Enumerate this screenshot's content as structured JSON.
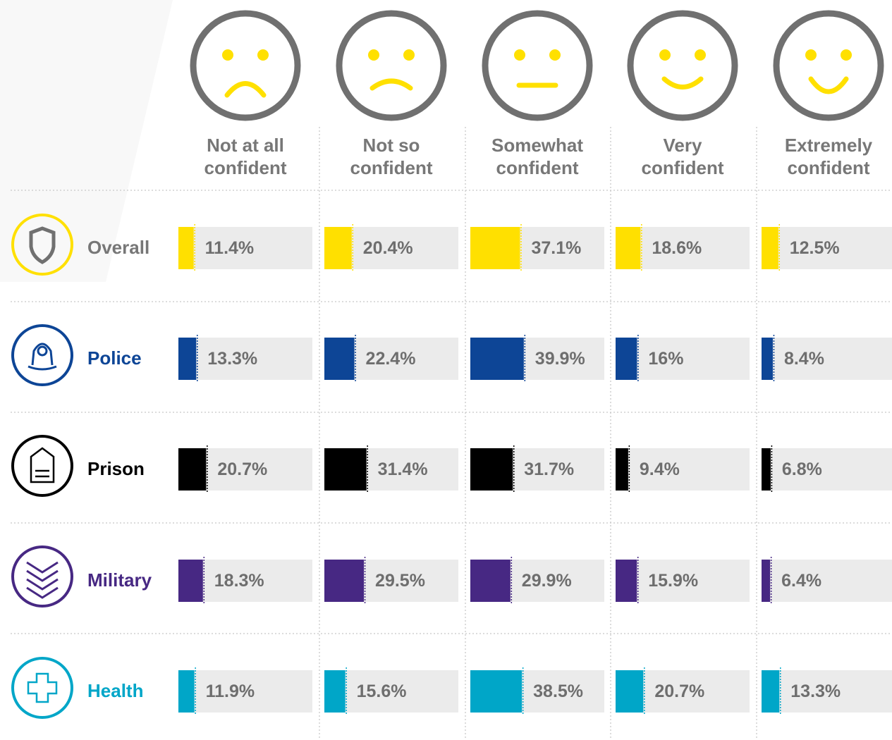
{
  "chart_data": {
    "type": "bar",
    "categories": [
      "Not at all confident",
      "Not so confident",
      "Somewhat confident",
      "Very confident",
      "Extremely confident"
    ],
    "xlim": [
      0,
      100
    ],
    "series": [
      {
        "name": "Overall",
        "color": "#ffe000",
        "name_color": "#777777",
        "values": [
          11.4,
          20.4,
          37.1,
          18.6,
          12.5
        ],
        "value_labels": [
          "11.4%",
          "20.4%",
          "37.1%",
          "18.6%",
          "12.5%"
        ]
      },
      {
        "name": "Police",
        "color": "#0d4596",
        "name_color": "#0d4596",
        "values": [
          13.3,
          22.4,
          39.9,
          16,
          8.4
        ],
        "value_labels": [
          "13.3%",
          "22.4%",
          "39.9%",
          "16%",
          "8.4%"
        ]
      },
      {
        "name": "Prison",
        "color": "#000000",
        "name_color": "#000000",
        "values": [
          20.7,
          31.4,
          31.7,
          9.4,
          6.8
        ],
        "value_labels": [
          "20.7%",
          "31.4%",
          "31.7%",
          "9.4%",
          "6.8%"
        ]
      },
      {
        "name": "Military",
        "color": "#472883",
        "name_color": "#472883",
        "values": [
          18.3,
          29.5,
          29.9,
          15.9,
          6.4
        ],
        "value_labels": [
          "18.3%",
          "29.5%",
          "29.9%",
          "15.9%",
          "6.4%"
        ]
      },
      {
        "name": "Health",
        "color": "#00a6c8",
        "name_color": "#00a6c8",
        "values": [
          11.9,
          15.6,
          38.5,
          20.7,
          13.3
        ],
        "value_labels": [
          "11.9%",
          "15.6%",
          "38.5%",
          "20.7%",
          "13.3%"
        ]
      }
    ]
  }
}
